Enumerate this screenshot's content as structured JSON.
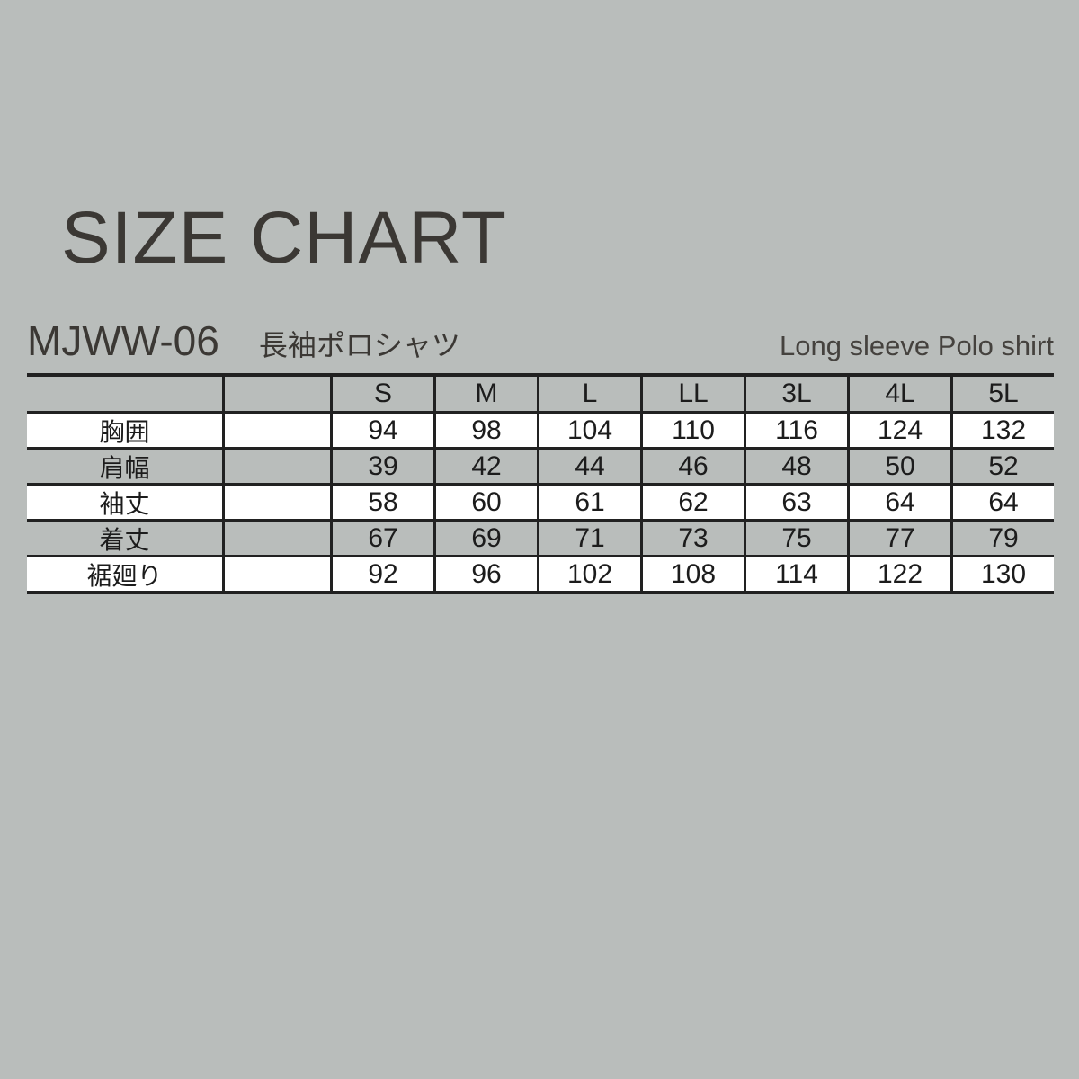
{
  "page": {
    "title": "SIZE CHART"
  },
  "product": {
    "code": "MJWW-06",
    "name_ja": "長袖ポロシャツ",
    "name_en": "Long sleeve Polo shirt"
  },
  "chart_data": {
    "type": "table",
    "title": "SIZE CHART",
    "categories": [
      "S",
      "M",
      "L",
      "LL",
      "3L",
      "4L",
      "5L"
    ],
    "rows": [
      {
        "label": "胸囲",
        "values": [
          94,
          98,
          104,
          110,
          116,
          124,
          132
        ]
      },
      {
        "label": "肩幅",
        "values": [
          39,
          42,
          44,
          46,
          48,
          50,
          52
        ]
      },
      {
        "label": "袖丈",
        "values": [
          58,
          60,
          61,
          62,
          63,
          64,
          64
        ]
      },
      {
        "label": "着丈",
        "values": [
          67,
          69,
          71,
          73,
          75,
          77,
          79
        ]
      },
      {
        "label": "裾廻り",
        "values": [
          92,
          96,
          102,
          108,
          114,
          122,
          130
        ]
      }
    ]
  },
  "colors": {
    "background": "#b9bdbb",
    "table_line": "#212121",
    "text_dark": "#3b3834",
    "row_white": "#ffffff"
  }
}
